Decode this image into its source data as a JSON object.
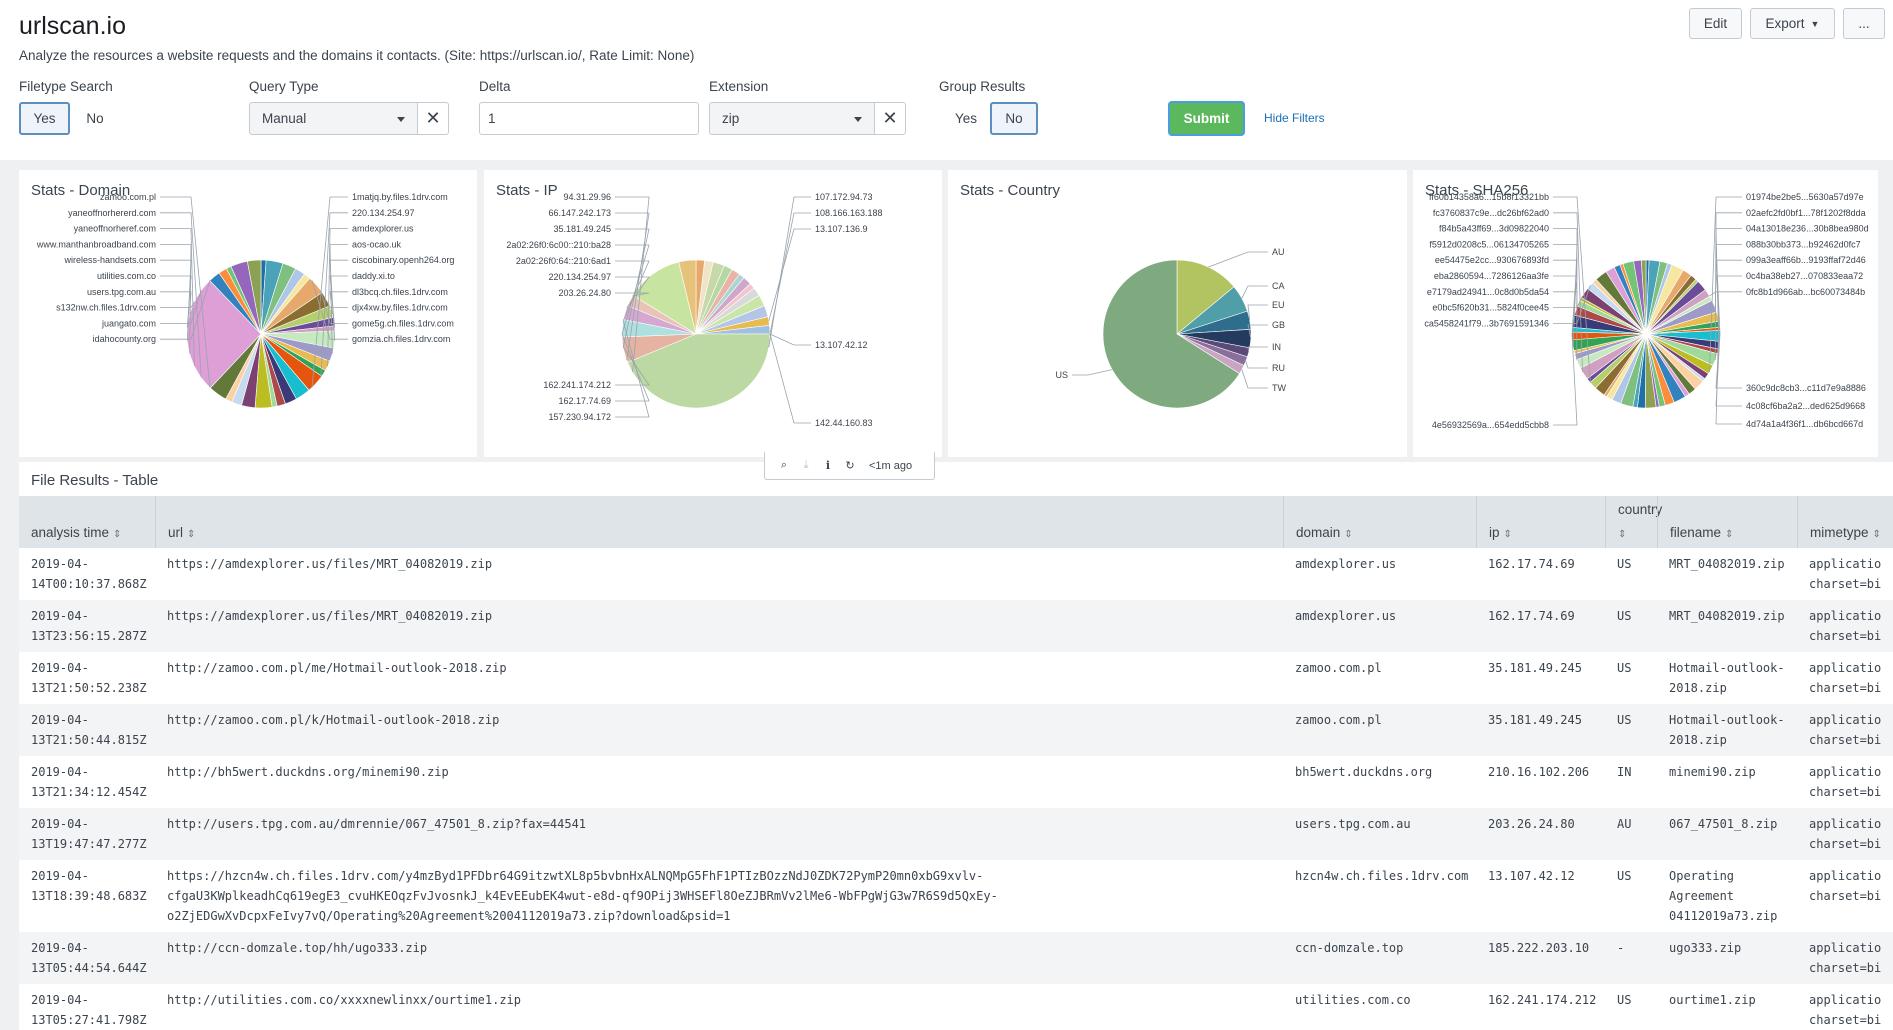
{
  "app": {
    "title": "urlscan.io",
    "description": "Analyze the resources a website requests and the domains it contacts. (Site: https://urlscan.io/, Rate Limit: None)",
    "buttons": {
      "edit": "Edit",
      "export": "Export",
      "more": "..."
    }
  },
  "filters": {
    "filetype": {
      "label": "Filetype Search",
      "yes": "Yes",
      "no": "No",
      "selected": "Yes"
    },
    "query_type": {
      "label": "Query Type",
      "value": "Manual"
    },
    "delta": {
      "label": "Delta",
      "value": "1"
    },
    "extension": {
      "label": "Extension",
      "value": "zip"
    },
    "group": {
      "label": "Group Results",
      "yes": "Yes",
      "no": "No",
      "selected": "No"
    },
    "submit": "Submit",
    "hide": "Hide Filters"
  },
  "panels": {
    "domain": {
      "title": "Stats - Domain",
      "left_labels": [
        "zamoo.com.pl",
        "yaneoffnorhererd.com",
        "yaneoffnorheref.com",
        "www.manthanbroadband.com",
        "wireless-handsets.com",
        "utilities.com.co",
        "users.tpg.com.au",
        "s132nw.ch.files.1drv.com",
        "juangato.com",
        "idahocounty.org"
      ],
      "right_labels": [
        "1matjq.by.files.1drv.com",
        "220.134.254.97",
        "amdexplorer.us",
        "aos-ocao.uk",
        "ciscobinary.openh264.org",
        "daddy.xi.to",
        "dl3bcq.ch.files.1drv.com",
        "djx4xw.by.files.1drv.com",
        "gome5g.ch.files.1drv.com",
        "gomzia.ch.files.1drv.com"
      ]
    },
    "ip": {
      "title": "Stats - IP",
      "left_labels": [
        "94.31.29.96",
        "66.147.242.173",
        "35.181.49.245",
        "2a02:26f0:6c00::210:ba28",
        "2a02:26f0:64::210:6ad1",
        "220.134.254.97",
        "203.26.24.80",
        "162.241.174.212",
        "162.17.74.69",
        "157.230.94.172"
      ],
      "right_labels": [
        "107.172.94.73",
        "108.166.163.188",
        "13.107.136.9",
        "13.107.42.12",
        "142.44.160.83"
      ]
    },
    "country": {
      "title": "Stats - Country",
      "labels": [
        "AU",
        "CA",
        "EU",
        "GB",
        "IN",
        "RU",
        "TW",
        "US"
      ]
    },
    "sha": {
      "title": "Stats - SHA256",
      "left_labels": [
        "ff60b14358a6...15b8f13321bb",
        "fc3760837c9e...dc26bf62ad0",
        "f84b5a43ff69...3d09822040",
        "f5912d0208c5...06134705265",
        "ee54475e2cc...930676893fd",
        "eba2860594...7286126aa3fe",
        "e7179ad24941...0c8d0b5da54",
        "e0bc5f620b31...5824f0cee45",
        "ca5458241f79...3b7691591346",
        "4e56932569a...654edd5cbb8"
      ],
      "right_labels": [
        "01974be2be5...5630a57d97e",
        "02aefc2fd0bf1...78f1202f8dda",
        "04a13018e236...30b8bea980d",
        "088b30bb373...b92462d0fc7",
        "099a3eaff66b...9193ffaf72d46",
        "0c4ba38eb27...070833eaa72",
        "0fc8b1d966ab...bc60073484b",
        "360c9dc8cb3...c11d7e9a8886",
        "4c08cf6ba2a2...ded625d9668",
        "4d74a1a4f36f1...db6bcd667d"
      ]
    }
  },
  "toolbar": {
    "refresh_time": "<1m ago"
  },
  "table": {
    "title": "File Results - Table",
    "columns": {
      "time": "analysis time",
      "url": "url",
      "domain": "domain",
      "ip": "ip",
      "country": "country",
      "filename": "filename",
      "mimetype": "mimetype"
    },
    "rows": [
      {
        "time": "2019-04-\n14T00:10:37.868Z",
        "url": "https://amdexplorer.us/files/MRT_04082019.zip",
        "domain": "amdexplorer.us",
        "ip": "162.17.74.69",
        "country": "US",
        "filename": "MRT_04082019.zip",
        "mimetype": "applicatio\ncharset=bi"
      },
      {
        "time": "2019-04-\n13T23:56:15.287Z",
        "url": "https://amdexplorer.us/files/MRT_04082019.zip",
        "domain": "amdexplorer.us",
        "ip": "162.17.74.69",
        "country": "US",
        "filename": "MRT_04082019.zip",
        "mimetype": "applicatio\ncharset=bi"
      },
      {
        "time": "2019-04-\n13T21:50:52.238Z",
        "url": "http://zamoo.com.pl/me/Hotmail-outlook-2018.zip",
        "domain": "zamoo.com.pl",
        "ip": "35.181.49.245",
        "country": "US",
        "filename": "Hotmail-outlook-\n2018.zip",
        "mimetype": "applicatio\ncharset=bi"
      },
      {
        "time": "2019-04-\n13T21:50:44.815Z",
        "url": "http://zamoo.com.pl/k/Hotmail-outlook-2018.zip",
        "domain": "zamoo.com.pl",
        "ip": "35.181.49.245",
        "country": "US",
        "filename": "Hotmail-outlook-\n2018.zip",
        "mimetype": "applicatio\ncharset=bi"
      },
      {
        "time": "2019-04-\n13T21:34:12.454Z",
        "url": "http://bh5wert.duckdns.org/minemi90.zip",
        "domain": "bh5wert.duckdns.org",
        "ip": "210.16.102.206",
        "country": "IN",
        "filename": "minemi90.zip",
        "mimetype": "applicatio\ncharset=bi"
      },
      {
        "time": "2019-04-\n13T19:47:47.277Z",
        "url": "http://users.tpg.com.au/dmrennie/067_47501_8.zip?fax=44541",
        "domain": "users.tpg.com.au",
        "ip": "203.26.24.80",
        "country": "AU",
        "filename": "067_47501_8.zip",
        "mimetype": "applicatio\ncharset=bi"
      },
      {
        "time": "2019-04-\n13T18:39:48.683Z",
        "url": "https://hzcn4w.ch.files.1drv.com/y4mzByd1PFDbr64G9itzwtXL8p5bvbnHxALNQMpG5FhF1PTIzBOzzNdJ0ZDK72PymP20mn0xbG9xvlv-\ncfgaU3KWplkeadhCq619egE3_cvuHKEOqzFvJvosnkJ_k4EvEEubEK4wut-e8d-qf9OPij3WHSEFl8OeZJBRmVv2lMe6-WbFPgWjG3w7R6S9d5QxEy-\no2ZjEDGwXvDcpxFeIvy7vQ/Operating%20Agreement%2004112019a73.zip?download&psid=1",
        "domain": "hzcn4w.ch.files.1drv.com",
        "ip": "13.107.42.12",
        "country": "US",
        "filename": "Operating\nAgreement\n04112019a73.zip",
        "mimetype": "applicatio\ncharset=bi"
      },
      {
        "time": "2019-04-\n13T05:44:54.644Z",
        "url": "http://ccn-domzale.top/hh/ugo333.zip",
        "domain": "ccn-domzale.top",
        "ip": "185.222.203.10",
        "country": "-",
        "filename": "ugo333.zip",
        "mimetype": "applicatio\ncharset=bi"
      },
      {
        "time": "2019-04-\n13T05:27:41.798Z",
        "url": "http://utilities.com.co/xxxxnewlinxx/ourtime1.zip",
        "domain": "utilities.com.co",
        "ip": "162.241.174.212",
        "country": "US",
        "filename": "ourtime1.zip",
        "mimetype": "applicatio\ncharset=bi"
      }
    ]
  },
  "chart_data": [
    {
      "type": "pie",
      "title": "Stats - Domain",
      "slices": 30,
      "dominant_label": "s132nw.ch.files.1drv.com"
    },
    {
      "type": "pie",
      "title": "Stats - IP",
      "categories": [
        "94.31.29.96",
        "66.147.242.173",
        "35.181.49.245",
        "2a02:26f0:6c00::210:ba28",
        "2a02:26f0:64::210:6ad1",
        "220.134.254.97",
        "203.26.24.80",
        "162.241.174.212",
        "162.17.74.69",
        "157.230.94.172",
        "107.172.94.73",
        "108.166.163.188",
        "13.107.136.9",
        "13.107.42.12",
        "142.44.160.83"
      ]
    },
    {
      "type": "pie",
      "title": "Stats - Country",
      "categories": [
        "US",
        "AU",
        "CA",
        "EU",
        "GB",
        "IN",
        "RU",
        "TW"
      ],
      "values": [
        66,
        14,
        6,
        4,
        4,
        2,
        2,
        2
      ]
    },
    {
      "type": "pie",
      "title": "Stats - SHA256",
      "slices": 60
    }
  ],
  "colors": {
    "pie_palette": [
      "#1f6fa8",
      "#4aa3b8",
      "#7fbf7f",
      "#aec7e8",
      "#f6e7a0",
      "#e6a86b",
      "#8c6d31",
      "#b5cf6b",
      "#6b4c9a",
      "#d0a0c0",
      "#c7e9c0",
      "#9e9ac8",
      "#e7ba52",
      "#31a354",
      "#e6550d",
      "#17becf",
      "#393b79",
      "#ad494a",
      "#a1d99b",
      "#bcbd22",
      "#7b4173",
      "#c6dbef",
      "#fdd0a2",
      "#637939",
      "#de9ed6",
      "#3182bd",
      "#fd8d3c",
      "#74c476",
      "#9467bd",
      "#8ca252"
    ],
    "country": [
      "#7fa97f",
      "#b2c461",
      "#4f9ea8",
      "#2e6d8c",
      "#243a5e",
      "#5a4a7a",
      "#8a6f9a",
      "#c9a5c2"
    ],
    "submit": "#5cb85c",
    "link": "#1a6fb5"
  }
}
